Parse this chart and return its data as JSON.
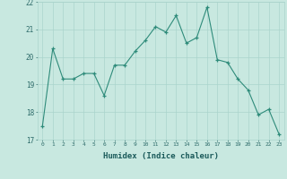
{
  "x": [
    0,
    1,
    2,
    3,
    4,
    5,
    6,
    7,
    8,
    9,
    10,
    11,
    12,
    13,
    14,
    15,
    16,
    17,
    18,
    19,
    20,
    21,
    22,
    23
  ],
  "y": [
    17.5,
    20.3,
    19.2,
    19.2,
    19.4,
    19.4,
    18.6,
    19.7,
    19.7,
    20.2,
    20.6,
    21.1,
    20.9,
    21.5,
    20.5,
    20.7,
    21.8,
    19.9,
    19.8,
    19.2,
    18.8,
    17.9,
    18.1,
    17.2
  ],
  "title": "",
  "xlabel": "Humidex (Indice chaleur)",
  "ylabel": "",
  "xlim": [
    -0.5,
    23.5
  ],
  "ylim": [
    17.0,
    22.0
  ],
  "yticks": [
    17,
    18,
    19,
    20,
    21,
    22
  ],
  "xticks": [
    0,
    1,
    2,
    3,
    4,
    5,
    6,
    7,
    8,
    9,
    10,
    11,
    12,
    13,
    14,
    15,
    16,
    17,
    18,
    19,
    20,
    21,
    22,
    23
  ],
  "line_color": "#2e8b7a",
  "marker": "+",
  "bg_color": "#c8e8e0",
  "grid_color": "#aad4cc",
  "axes_bg": "#c8e8e0",
  "tick_color": "#2e6b6a",
  "label_color": "#1a5a5a"
}
